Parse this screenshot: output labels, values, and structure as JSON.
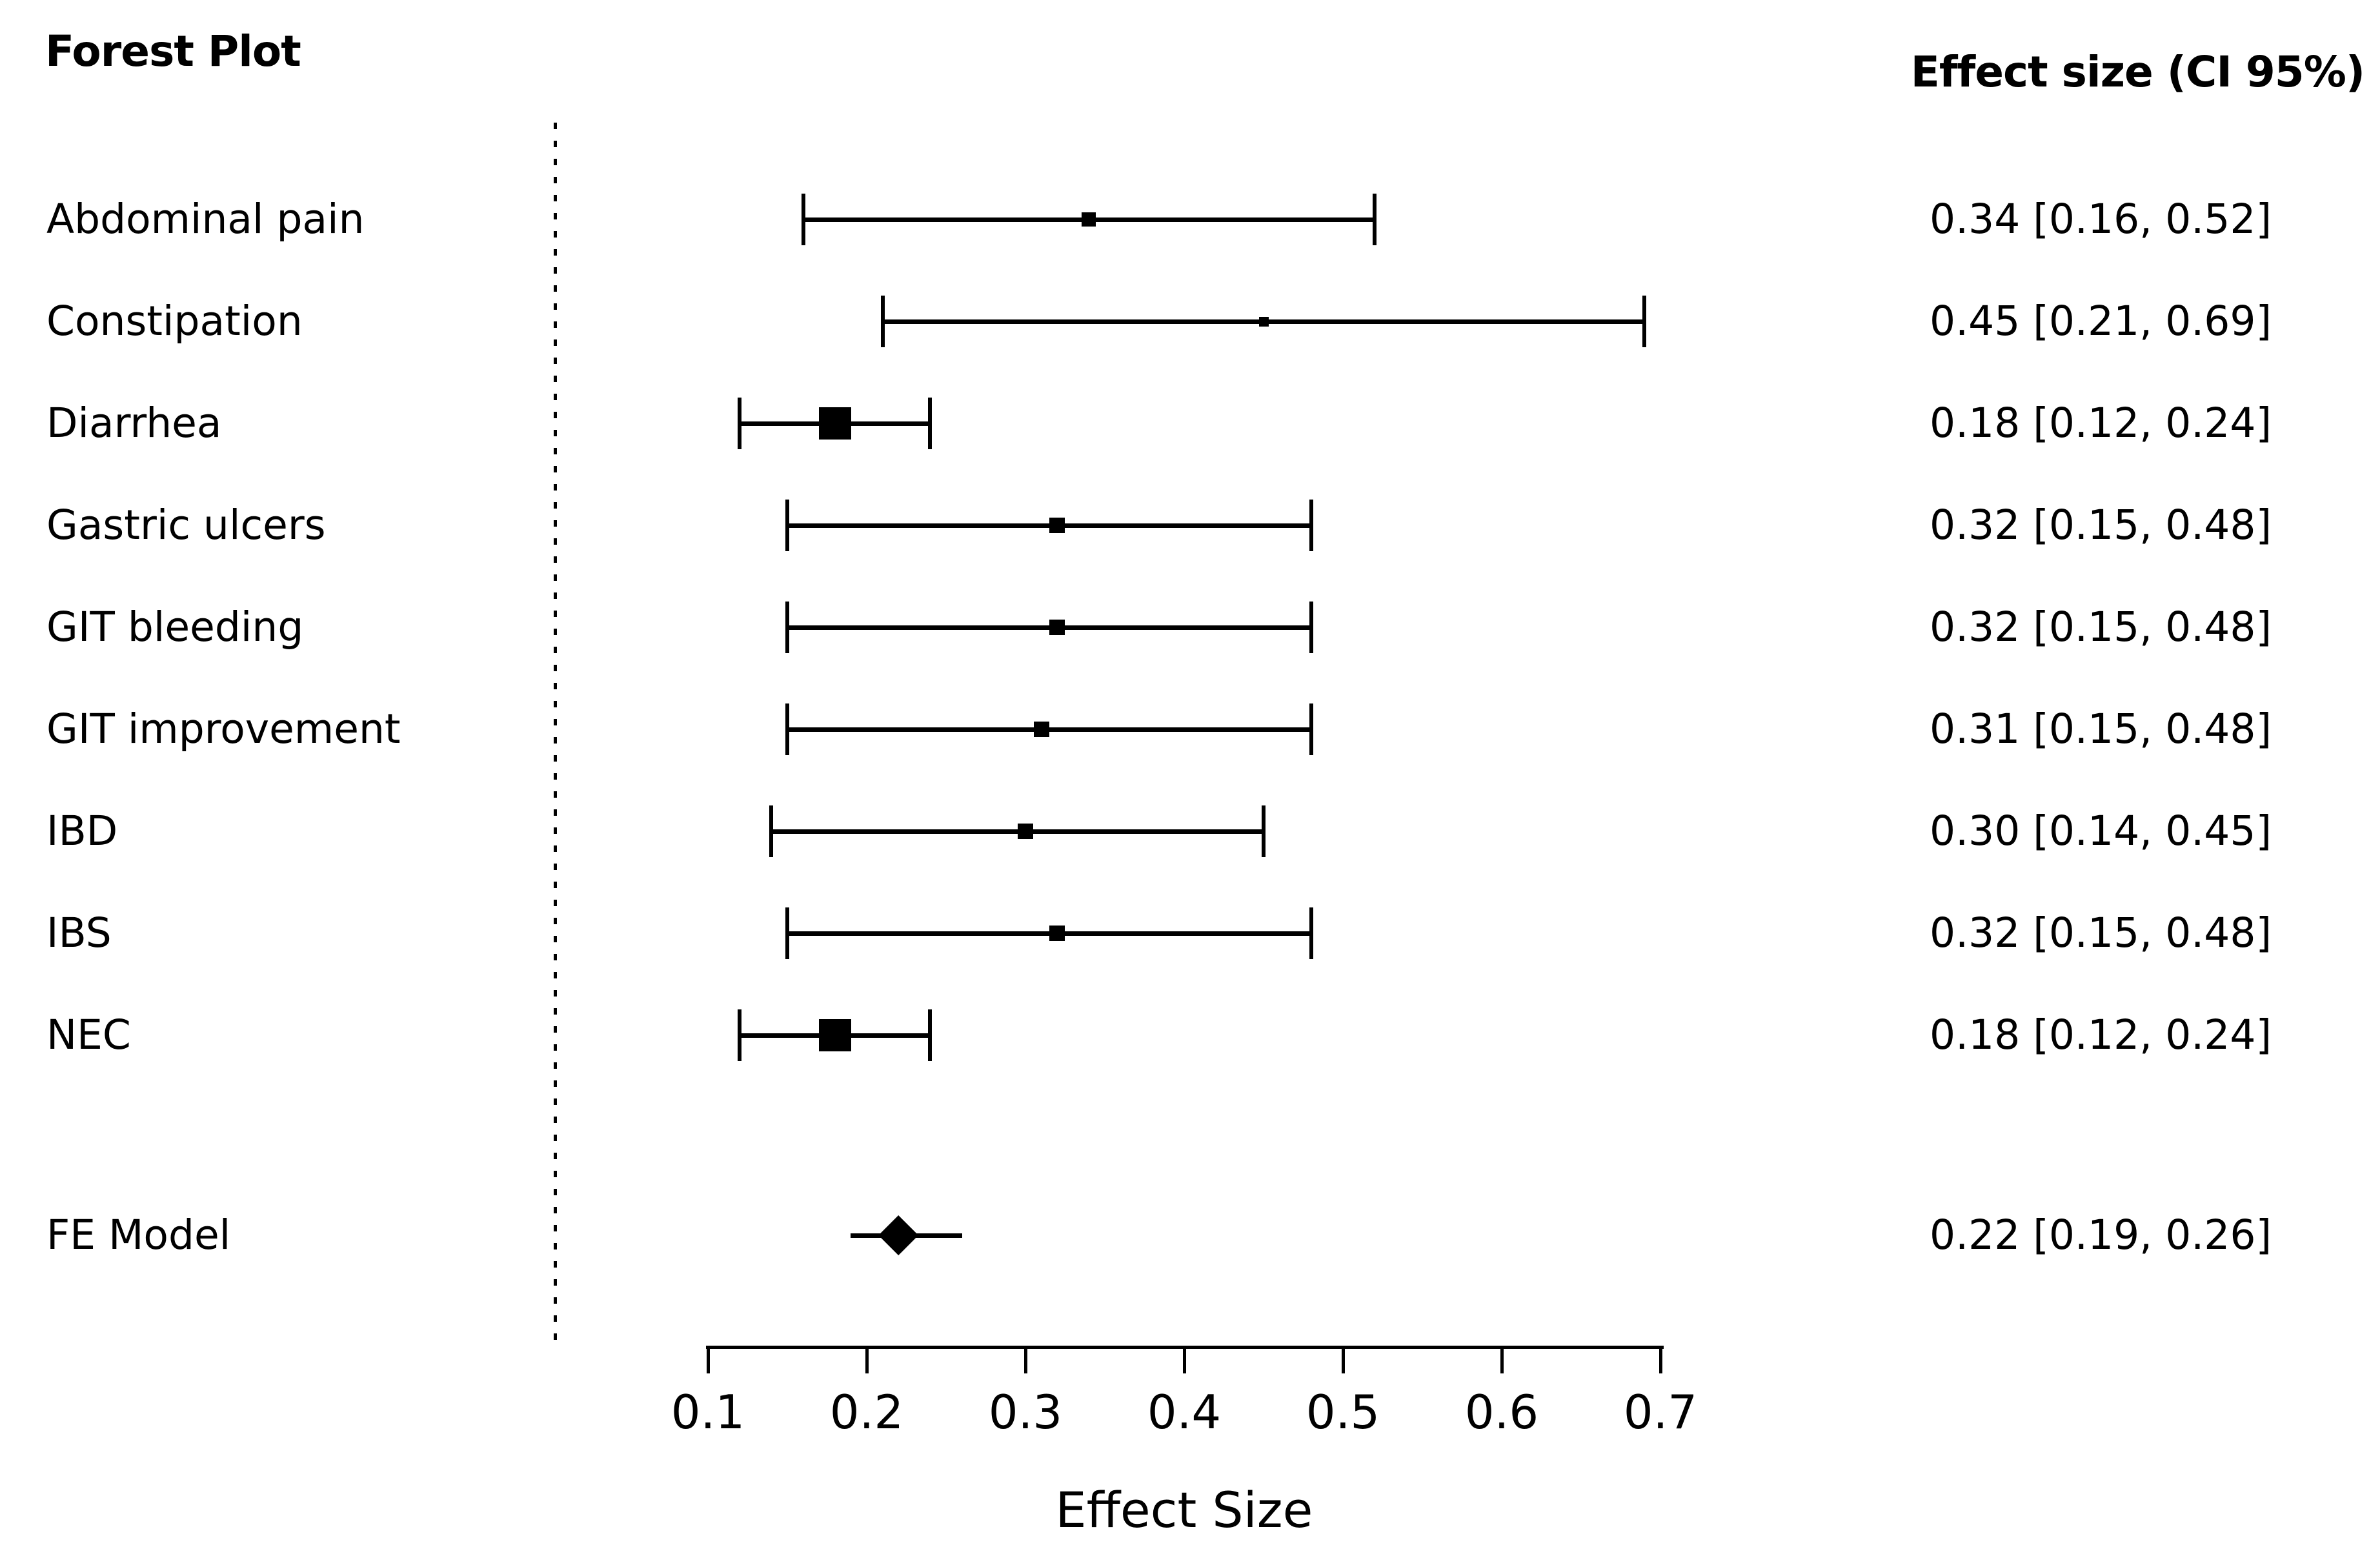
{
  "title": "Forest Plot",
  "columns": {
    "effect_header": "Effect size (CI 95%)"
  },
  "chart_data": {
    "type": "forest",
    "title": "Forest Plot",
    "xlabel": "Effect Size",
    "xlim": [
      0.1,
      0.7
    ],
    "x_ticks": [
      "0.1",
      "0.2",
      "0.3",
      "0.4",
      "0.5",
      "0.6",
      "0.7"
    ],
    "reference_line_value": 0,
    "grid": false,
    "rows": [
      {
        "label": "Abdominal pain",
        "estimate": 0.34,
        "ci_low": 0.16,
        "ci_high": 0.52,
        "text": "0.34 [0.16, 0.52]",
        "marker_size": 22
      },
      {
        "label": "Constipation",
        "estimate": 0.45,
        "ci_low": 0.21,
        "ci_high": 0.69,
        "text": "0.45 [0.21, 0.69]",
        "marker_size": 15
      },
      {
        "label": "Diarrhea",
        "estimate": 0.18,
        "ci_low": 0.12,
        "ci_high": 0.24,
        "text": "0.18 [0.12, 0.24]",
        "marker_size": 50
      },
      {
        "label": "Gastric ulcers",
        "estimate": 0.32,
        "ci_low": 0.15,
        "ci_high": 0.48,
        "text": "0.32 [0.15, 0.48]",
        "marker_size": 24
      },
      {
        "label": "GIT bleeding",
        "estimate": 0.32,
        "ci_low": 0.15,
        "ci_high": 0.48,
        "text": "0.32 [0.15, 0.48]",
        "marker_size": 24
      },
      {
        "label": "GIT improvement",
        "estimate": 0.31,
        "ci_low": 0.15,
        "ci_high": 0.48,
        "text": "0.31 [0.15, 0.48]",
        "marker_size": 24
      },
      {
        "label": "IBD",
        "estimate": 0.3,
        "ci_low": 0.14,
        "ci_high": 0.45,
        "text": "0.30 [0.14, 0.45]",
        "marker_size": 24
      },
      {
        "label": "IBS",
        "estimate": 0.32,
        "ci_low": 0.15,
        "ci_high": 0.48,
        "text": "0.32 [0.15, 0.48]",
        "marker_size": 24
      },
      {
        "label": "NEC",
        "estimate": 0.18,
        "ci_low": 0.12,
        "ci_high": 0.24,
        "text": "0.18 [0.12, 0.24]",
        "marker_size": 50
      }
    ],
    "summary": {
      "label": "FE Model",
      "estimate": 0.22,
      "ci_low": 0.19,
      "ci_high": 0.26,
      "text": "0.22 [0.19, 0.26]",
      "marker": "diamond"
    },
    "colors": {
      "foreground": "#000000",
      "background": "#ffffff"
    }
  }
}
